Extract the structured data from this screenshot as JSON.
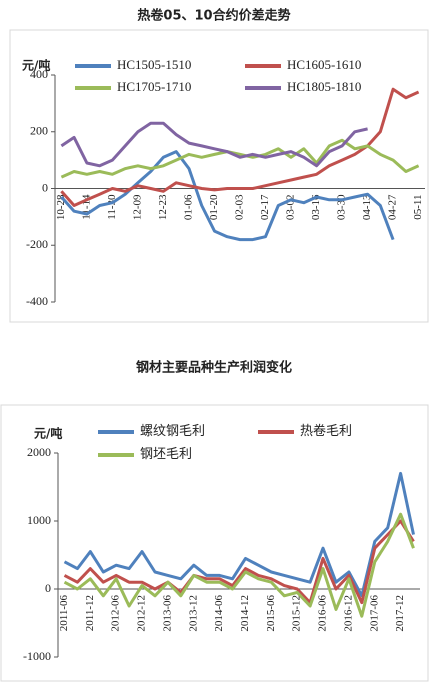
{
  "chart_data": [
    {
      "type": "line",
      "title": "热卷05、10合约价差走势",
      "y_label": "元/吨",
      "categories": [
        "10-28",
        null,
        "11-14",
        null,
        "11-30",
        null,
        "12-09",
        null,
        "12-23",
        null,
        "01-06",
        null,
        "01-20",
        null,
        "02-03",
        null,
        "02-17",
        null,
        "03-02",
        null,
        "03-16",
        null,
        "03-30",
        null,
        "04-13",
        null,
        "04-27",
        null,
        "05-11"
      ],
      "ylim": [
        -400,
        400
      ],
      "yticks": [
        -400,
        -200,
        0,
        200,
        400
      ],
      "series": [
        {
          "name": "HC1505-1510",
          "color": "#4f81bd",
          "values": [
            -30,
            -80,
            -90,
            -60,
            -50,
            -20,
            20,
            60,
            110,
            130,
            70,
            -60,
            -150,
            -170,
            -180,
            -180,
            -170,
            -60,
            -40,
            -50,
            -30,
            -40,
            -40,
            -30,
            -20,
            -60,
            -180,
            null,
            null
          ]
        },
        {
          "name": "HC1605-1610",
          "color": "#c0504d",
          "values": [
            -10,
            -60,
            -40,
            -20,
            0,
            -10,
            10,
            0,
            -10,
            20,
            10,
            0,
            -5,
            0,
            0,
            0,
            10,
            20,
            30,
            40,
            50,
            80,
            100,
            120,
            150,
            200,
            350,
            320,
            340
          ]
        },
        {
          "name": "HC1705-1710",
          "color": "#9bbb59",
          "values": [
            40,
            60,
            50,
            60,
            50,
            70,
            80,
            70,
            80,
            100,
            120,
            110,
            120,
            130,
            120,
            110,
            120,
            140,
            110,
            140,
            90,
            150,
            170,
            140,
            150,
            120,
            100,
            60,
            80
          ]
        },
        {
          "name": "HC1805-1810",
          "color": "#8064a2",
          "values": [
            150,
            180,
            90,
            80,
            100,
            150,
            200,
            230,
            230,
            190,
            160,
            150,
            140,
            130,
            110,
            120,
            110,
            120,
            130,
            110,
            80,
            130,
            150,
            200,
            210,
            null,
            null,
            null,
            null
          ]
        }
      ]
    },
    {
      "type": "line",
      "title": "钢材主要品种生产利润变化",
      "y_label": "元/吨",
      "categories": [
        "2011-06",
        null,
        "2011-12",
        null,
        "2012-06",
        null,
        "2012-12",
        null,
        "2013-06",
        null,
        "2013-12",
        null,
        "2014-06",
        null,
        "2014-12",
        null,
        "2015-06",
        null,
        "2015-12",
        null,
        "2016-06",
        null,
        "2016-12",
        null,
        "2017-06",
        null,
        "2017-12",
        null
      ],
      "ylim": [
        -1000,
        2000
      ],
      "yticks": [
        -1000,
        0,
        1000,
        2000
      ],
      "series": [
        {
          "name": "螺纹钢毛利",
          "color": "#4f81bd",
          "values": [
            400,
            300,
            550,
            250,
            350,
            300,
            550,
            250,
            200,
            150,
            350,
            200,
            200,
            150,
            450,
            350,
            250,
            200,
            150,
            100,
            600,
            100,
            250,
            -100,
            700,
            900,
            1700,
            800
          ]
        },
        {
          "name": "热卷毛利",
          "color": "#c0504d",
          "values": [
            200,
            100,
            300,
            100,
            200,
            100,
            100,
            0,
            100,
            -50,
            200,
            150,
            150,
            50,
            300,
            200,
            150,
            50,
            0,
            -200,
            450,
            0,
            200,
            -200,
            600,
            800,
            1000,
            700
          ]
        },
        {
          "name": "钢坯毛利",
          "color": "#9bbb59",
          "values": [
            100,
            0,
            150,
            -100,
            150,
            -250,
            50,
            -100,
            100,
            -100,
            200,
            100,
            100,
            0,
            250,
            150,
            100,
            -100,
            -50,
            -250,
            300,
            -300,
            150,
            -400,
            400,
            700,
            1100,
            600
          ]
        }
      ]
    }
  ]
}
